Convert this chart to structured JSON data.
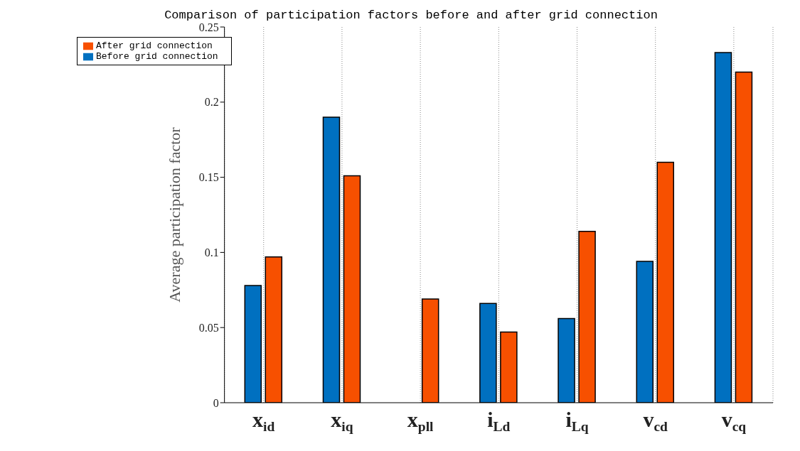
{
  "chart_data": {
    "type": "bar",
    "title": "Comparison of participation factors before and after grid connection",
    "ylabel": "Average participation factor",
    "categories": [
      "x$_{id}$",
      "x$_{iq}$",
      "x$_{pll}$",
      "i$_{Ld}$",
      "i$_{Lq}$",
      "v$_{cd}$",
      "v$_{cq}$"
    ],
    "series": [
      {
        "name": "Before grid connection",
        "color": "#0070c0",
        "values": [
          0.078,
          0.19,
          0,
          0.066,
          0.056,
          0.094,
          0.233
        ]
      },
      {
        "name": "After grid connection",
        "color": "#f75000",
        "values": [
          0.097,
          0.151,
          0.069,
          0.047,
          0.114,
          0.16,
          0.22
        ]
      }
    ],
    "ylim": [
      0,
      0.25
    ],
    "yticks": [
      0,
      0.05,
      {
        "value": 0.1,
        "label": "0.1"
      },
      0.15,
      {
        "value": 0.2,
        "label": "0.2"
      },
      0.25
    ],
    "grid": "x",
    "legend": "top left"
  }
}
